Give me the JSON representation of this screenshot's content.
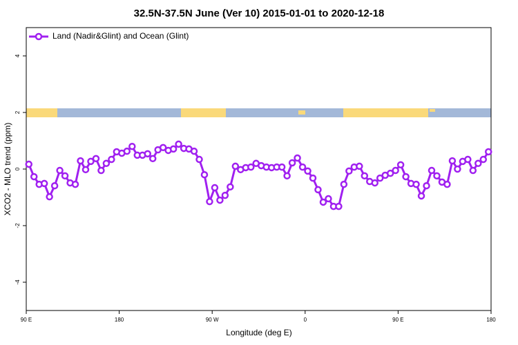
{
  "chart_data": {
    "type": "line",
    "title": "32.5N-37.5N June (Ver 10)   2015-01-01 to 2020-12-18",
    "x_label": "Longitude (deg E)",
    "y_label": "XCO2 - MLO trend (ppm)",
    "xlim": [
      90,
      540
    ],
    "ylim": [
      -5,
      5
    ],
    "xticks": [
      {
        "value": 90,
        "label": "90 E"
      },
      180,
      {
        "value": 270,
        "label": "90 W"
      },
      {
        "value": 360,
        "label": "0"
      },
      {
        "value": 450,
        "label": "90 E"
      },
      {
        "value": 540,
        "label": "180"
      }
    ],
    "yticks": [
      -4,
      -2,
      0,
      2,
      4
    ],
    "grid": false,
    "legend": "top-left",
    "x": [
      92.5,
      97.5,
      102.5,
      107.5,
      112.5,
      117.5,
      122.5,
      127.5,
      132.5,
      137.5,
      142.5,
      147.5,
      152.5,
      157.5,
      162.5,
      167.5,
      172.5,
      177.5,
      182.5,
      187.5,
      192.5,
      197.5,
      202.5,
      207.5,
      212.5,
      217.5,
      222.5,
      227.5,
      232.5,
      237.5,
      242.5,
      247.5,
      252.5,
      257.5,
      262.5,
      267.5,
      272.5,
      277.5,
      282.5,
      287.5,
      292.5,
      297.5,
      302.5,
      307.5,
      312.5,
      317.5,
      322.5,
      327.5,
      332.5,
      337.5,
      342.5,
      347.5,
      352.5,
      357.5,
      362.5,
      367.5,
      372.5,
      377.5,
      382.5,
      387.5,
      392.5,
      397.5,
      402.5,
      407.5,
      412.5,
      417.5,
      422.5,
      427.5,
      432.5,
      437.5,
      442.5,
      447.5,
      452.5,
      457.5,
      462.5,
      467.5,
      472.5,
      477.5,
      482.5,
      487.5,
      492.5,
      497.5,
      502.5,
      507.5,
      512.5,
      517.5,
      522.5,
      527.5,
      532.5,
      537.5
    ],
    "series": [
      {
        "name": "Land (Nadir&Glint) and Ocean (Glint)",
        "color": "#a020f0",
        "values": [
          0.17,
          -0.27,
          -0.54,
          -0.51,
          -0.98,
          -0.59,
          -0.05,
          -0.24,
          -0.49,
          -0.54,
          0.29,
          -0.02,
          0.27,
          0.37,
          -0.05,
          0.2,
          0.34,
          0.61,
          0.56,
          0.63,
          0.8,
          0.49,
          0.49,
          0.54,
          0.37,
          0.68,
          0.76,
          0.66,
          0.71,
          0.88,
          0.73,
          0.71,
          0.63,
          0.34,
          -0.2,
          -1.15,
          -0.66,
          -1.1,
          -0.93,
          -0.63,
          0.1,
          -0.02,
          0.05,
          0.07,
          0.2,
          0.12,
          0.07,
          0.05,
          0.07,
          0.07,
          -0.24,
          0.22,
          0.39,
          0.07,
          -0.07,
          -0.32,
          -0.73,
          -1.17,
          -1.05,
          -1.32,
          -1.32,
          -0.54,
          -0.07,
          0.07,
          0.1,
          -0.24,
          -0.44,
          -0.49,
          -0.32,
          -0.22,
          -0.15,
          -0.05,
          0.15,
          -0.27,
          -0.51,
          -0.54,
          -0.95,
          -0.59,
          -0.05,
          -0.24,
          -0.46,
          -0.54,
          0.29,
          0.0,
          0.27,
          0.34,
          -0.05,
          0.2,
          0.34,
          0.61
        ]
      }
    ]
  }
}
